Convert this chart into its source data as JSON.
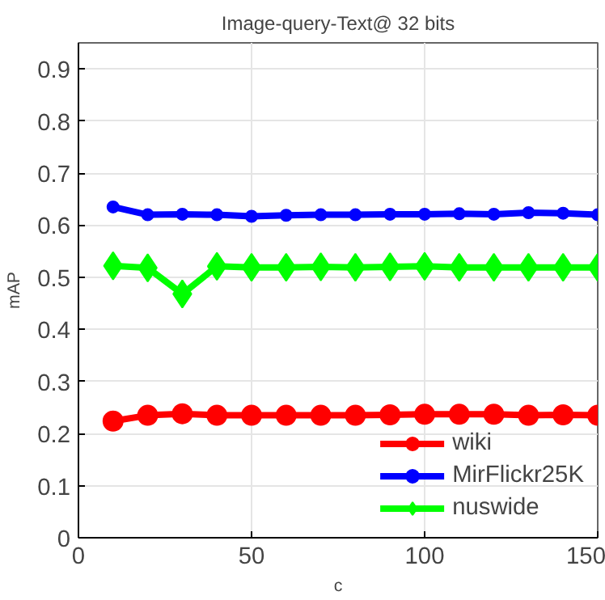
{
  "chart_data": {
    "type": "line",
    "title": "Image-query-Text@ 32 bits",
    "xlabel": "c",
    "ylabel": "mAP",
    "x": [
      10,
      20,
      30,
      40,
      50,
      60,
      70,
      80,
      90,
      100,
      110,
      120,
      130,
      140,
      150
    ],
    "series": [
      {
        "name": "wiki",
        "color": "#ff0000",
        "marker": "circle",
        "values": [
          0.224,
          0.235,
          0.238,
          0.235,
          0.235,
          0.235,
          0.235,
          0.235,
          0.236,
          0.237,
          0.237,
          0.237,
          0.235,
          0.236,
          0.235
        ]
      },
      {
        "name": "MirFlickr25K",
        "color": "#0000ff",
        "marker": "circle",
        "values": [
          0.635,
          0.62,
          0.621,
          0.62,
          0.617,
          0.619,
          0.62,
          0.62,
          0.621,
          0.621,
          0.622,
          0.621,
          0.624,
          0.623,
          0.62
        ]
      },
      {
        "name": "nuswide",
        "color": "#00ff00",
        "marker": "diamond",
        "values": [
          0.522,
          0.518,
          0.468,
          0.521,
          0.519,
          0.519,
          0.52,
          0.519,
          0.52,
          0.521,
          0.519,
          0.519,
          0.519,
          0.519,
          0.519
        ]
      }
    ],
    "xlim": [
      0,
      150
    ],
    "ylim": [
      0,
      0.95
    ],
    "xticks": [
      0,
      50,
      100,
      150
    ],
    "yticks": [
      0,
      0.1,
      0.2,
      0.3,
      0.4,
      0.5,
      0.6,
      0.7,
      0.8,
      0.9
    ],
    "grid": true,
    "legend": "bottom right",
    "line_style": "solid"
  }
}
